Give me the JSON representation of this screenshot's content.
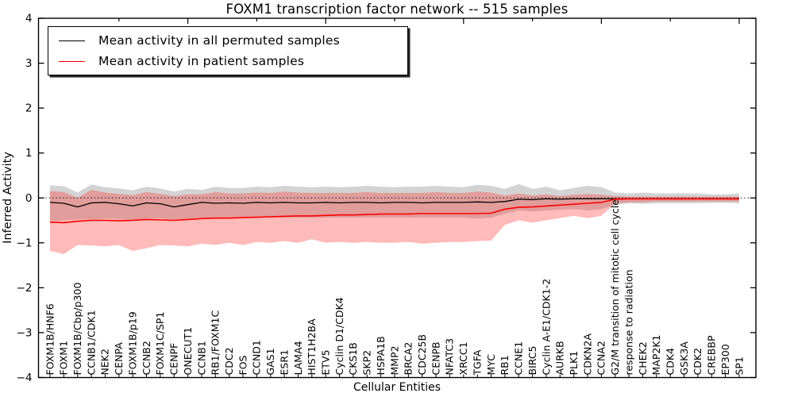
{
  "chart_data": {
    "type": "line",
    "title": "FOXM1 transcription factor network -- 515 samples",
    "xlabel": "Cellular Entities",
    "ylabel": "Inferred Activity",
    "ylim": [
      -4,
      4
    ],
    "yticks": [
      -4,
      -3,
      -2,
      -1,
      0,
      1,
      2,
      3,
      4
    ],
    "zero_line_style": "dotted",
    "grid": false,
    "legend_position": "upper left",
    "categories": [
      "FOXM1B/HNF6",
      "FOXM1",
      "FOXM1B/Cbp/p300",
      "CCNB1/CDK1",
      "NEK2",
      "CENPA",
      "FOXM1B/p19",
      "CCNB2",
      "FOXM1C/SP1",
      "CENPF",
      "ONECUT1",
      "CCNB1",
      "RB1/FOXM1C",
      "CDC2",
      "FOS",
      "CCND1",
      "GAS1",
      "ESR1",
      "LAMA4",
      "HIST1H2BA",
      "ETV5",
      "Cyclin D1/CDK4",
      "CKS1B",
      "SKP2",
      "HSPA1B",
      "MMP2",
      "BRCA2",
      "CDC25B",
      "CENPB",
      "NFATC3",
      "XRCC1",
      "TGFA",
      "MYC",
      "RB1",
      "CCNE1",
      "BIRC5",
      "Cyclin A-E1/CDK1-2",
      "AURKB",
      "PLK1",
      "CDKN2A",
      "CCNA2",
      "G2/M transition of mitotic cell cycle",
      "response to radiation",
      "CHEK2",
      "MAP2K1",
      "CDK4",
      "GSK3A",
      "CDK2",
      "CREBBP",
      "EP300",
      "SP1"
    ],
    "series": [
      {
        "name": "Mean activity in all permuted samples",
        "color": "#000000",
        "line_width": 1.3,
        "band_fill": "rgba(128,128,128,0.35)",
        "values": [
          -0.1,
          -0.12,
          -0.2,
          -0.11,
          -0.1,
          -0.13,
          -0.18,
          -0.11,
          -0.13,
          -0.2,
          -0.15,
          -0.1,
          -0.12,
          -0.11,
          -0.12,
          -0.1,
          -0.11,
          -0.1,
          -0.11,
          -0.11,
          -0.1,
          -0.11,
          -0.1,
          -0.1,
          -0.11,
          -0.1,
          -0.1,
          -0.11,
          -0.1,
          -0.1,
          -0.1,
          -0.09,
          -0.1,
          -0.08,
          -0.03,
          -0.04,
          -0.02,
          -0.03,
          -0.02,
          -0.02,
          -0.02,
          -0.02,
          -0.02,
          -0.02,
          -0.02,
          -0.02,
          -0.02,
          -0.02,
          -0.02,
          -0.02,
          -0.02
        ],
        "band_upper": [
          0.28,
          0.26,
          0.12,
          0.3,
          0.24,
          0.21,
          0.17,
          0.25,
          0.21,
          0.14,
          0.2,
          0.18,
          0.25,
          0.22,
          0.22,
          0.25,
          0.24,
          0.27,
          0.25,
          0.24,
          0.25,
          0.24,
          0.25,
          0.27,
          0.25,
          0.24,
          0.25,
          0.25,
          0.27,
          0.25,
          0.24,
          0.29,
          0.27,
          0.2,
          0.31,
          0.2,
          0.25,
          0.17,
          0.22,
          0.27,
          0.24,
          0.12,
          0.1,
          0.12,
          0.1,
          0.1,
          0.1,
          0.1,
          0.08,
          0.08,
          0.1
        ],
        "band_lower": [
          -0.52,
          -0.5,
          -0.48,
          -0.48,
          -0.46,
          -0.47,
          -0.5,
          -0.46,
          -0.46,
          -0.48,
          -0.46,
          -0.44,
          -0.46,
          -0.44,
          -0.44,
          -0.44,
          -0.44,
          -0.44,
          -0.44,
          -0.44,
          -0.44,
          -0.44,
          -0.44,
          -0.44,
          -0.44,
          -0.44,
          -0.44,
          -0.44,
          -0.44,
          -0.44,
          -0.44,
          -0.46,
          -0.44,
          -0.35,
          -0.28,
          -0.3,
          -0.28,
          -0.26,
          -0.25,
          -0.28,
          -0.25,
          -0.15,
          -0.12,
          -0.13,
          -0.12,
          -0.12,
          -0.12,
          -0.12,
          -0.11,
          -0.11,
          -0.12
        ]
      },
      {
        "name": "Mean activity in patient samples",
        "color": "#ff0000",
        "line_width": 1.6,
        "band_fill": "rgba(255,40,40,0.32)",
        "values": [
          -0.54,
          -0.55,
          -0.52,
          -0.5,
          -0.5,
          -0.51,
          -0.5,
          -0.48,
          -0.49,
          -0.5,
          -0.48,
          -0.46,
          -0.45,
          -0.45,
          -0.44,
          -0.43,
          -0.42,
          -0.41,
          -0.4,
          -0.4,
          -0.39,
          -0.38,
          -0.38,
          -0.37,
          -0.36,
          -0.36,
          -0.36,
          -0.35,
          -0.35,
          -0.35,
          -0.35,
          -0.35,
          -0.34,
          -0.25,
          -0.21,
          -0.2,
          -0.18,
          -0.16,
          -0.14,
          -0.12,
          -0.1,
          -0.03,
          -0.02,
          -0.02,
          -0.02,
          -0.02,
          -0.02,
          -0.02,
          -0.02,
          -0.02,
          -0.02
        ],
        "band_upper": [
          0.15,
          0.13,
          0.0,
          0.18,
          0.12,
          0.09,
          0.06,
          0.13,
          0.09,
          0.04,
          0.08,
          0.08,
          0.13,
          0.1,
          0.1,
          0.12,
          0.11,
          0.14,
          0.12,
          0.11,
          0.11,
          0.11,
          0.11,
          0.13,
          0.11,
          0.11,
          0.11,
          0.11,
          0.13,
          0.11,
          0.11,
          0.14,
          0.12,
          0.05,
          0.1,
          0.05,
          0.08,
          0.04,
          0.07,
          0.09,
          0.07,
          0.04,
          0.03,
          0.03,
          0.03,
          0.03,
          0.03,
          0.03,
          0.03,
          0.03,
          0.03
        ],
        "band_lower": [
          -1.18,
          -1.25,
          -1.05,
          -1.06,
          -1.08,
          -1.05,
          -1.18,
          -1.12,
          -1.05,
          -1.06,
          -1.08,
          -1.02,
          -1.05,
          -1.0,
          -1.05,
          -0.98,
          -1.0,
          -0.96,
          -1.0,
          -0.92,
          -1.0,
          -0.98,
          -1.0,
          -0.98,
          -1.0,
          -1.0,
          -0.98,
          -1.02,
          -1.0,
          -0.98,
          -0.98,
          -0.96,
          -0.95,
          -0.6,
          -0.5,
          -0.55,
          -0.5,
          -0.45,
          -0.4,
          -0.45,
          -0.4,
          -0.12,
          -0.1,
          -0.1,
          -0.08,
          -0.08,
          -0.08,
          -0.08,
          -0.08,
          -0.08,
          -0.08
        ]
      }
    ]
  }
}
